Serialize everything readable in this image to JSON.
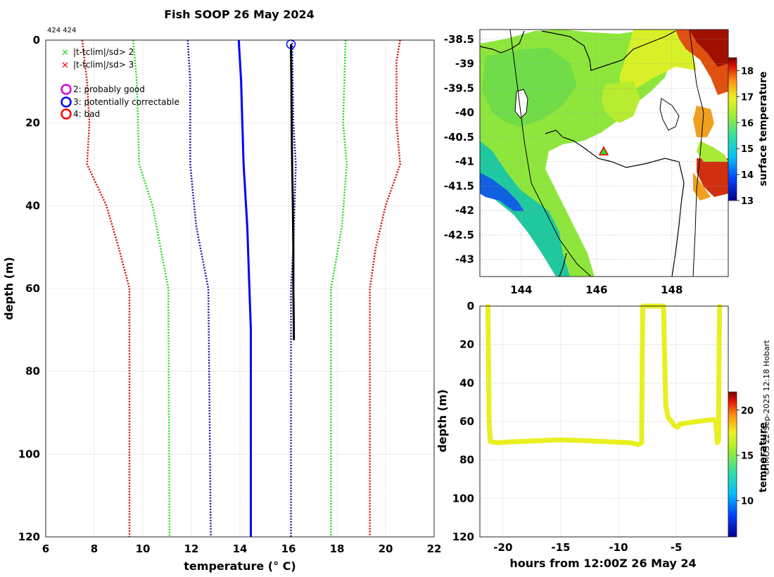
{
  "figure": {
    "title": "Fish SOOP 26 May 2024",
    "id_label": "424 424",
    "credit": "© IMOS 22-Sep-2025 12:18 Hobart"
  },
  "colors": {
    "profile": "#000000",
    "clim_mean": "#0000ff",
    "sd2": "#22dd22",
    "sd3": "#cc1111",
    "sd1": "#1a1aa8",
    "flag_good": "#dd00dd",
    "flag_correctable": "#0000ff",
    "flag_bad": "#ff0000",
    "track": "#e8f020"
  },
  "chart_data": [
    {
      "type": "line",
      "title": "Fish SOOP 26 May 2024",
      "xlabel": "temperature (° C)",
      "ylabel": "depth (m)",
      "xlim": [
        6,
        22
      ],
      "ylim": [
        120,
        0
      ],
      "xticks": [
        6,
        8,
        10,
        12,
        14,
        16,
        18,
        20,
        22
      ],
      "yticks": [
        0,
        20,
        40,
        60,
        80,
        100,
        120
      ],
      "grid": true,
      "legend": {
        "placement": "top-left",
        "entries": [
          {
            "marker": "x",
            "color": "#22dd22",
            "label": "|t-tclim|/sd> 2"
          },
          {
            "marker": "x",
            "color": "#ff0000",
            "label": "|t-tclim|/sd> 3"
          },
          {
            "marker": "o",
            "color": "#dd00dd",
            "label": "2: probably good"
          },
          {
            "marker": "o",
            "color": "#0000ff",
            "label": "3: potentially correctable"
          },
          {
            "marker": "o",
            "color": "#ff0000",
            "label": "4: bad"
          }
        ]
      },
      "series": [
        {
          "name": "clim_mean",
          "style": "solid",
          "color": "#0000ff",
          "points": [
            [
              13.95,
              0
            ],
            [
              14.0,
              5
            ],
            [
              14.05,
              10
            ],
            [
              14.1,
              20
            ],
            [
              14.15,
              30
            ],
            [
              14.3,
              45
            ],
            [
              14.45,
              70
            ],
            [
              14.45,
              120
            ]
          ]
        },
        {
          "name": "clim_minus_1sd",
          "style": "dotted",
          "color": "#1a1aa8",
          "points": [
            [
              11.85,
              0
            ],
            [
              11.95,
              10
            ],
            [
              11.95,
              30
            ],
            [
              12.2,
              45
            ],
            [
              12.7,
              60
            ],
            [
              12.8,
              120
            ]
          ]
        },
        {
          "name": "clim_plus_1sd",
          "style": "dotted",
          "color": "#1a1aa8",
          "points": [
            [
              16.15,
              0
            ],
            [
              16.2,
              20
            ],
            [
              16.3,
              30
            ],
            [
              16.2,
              50
            ],
            [
              16.1,
              60
            ],
            [
              16.1,
              120
            ]
          ]
        },
        {
          "name": "clim_minus_2sd",
          "style": "dotted",
          "color": "#22dd22",
          "points": [
            [
              9.6,
              0
            ],
            [
              9.75,
              10
            ],
            [
              9.85,
              30
            ],
            [
              10.4,
              40
            ],
            [
              11.05,
              60
            ],
            [
              11.1,
              120
            ]
          ]
        },
        {
          "name": "clim_plus_2sd",
          "style": "dotted",
          "color": "#22dd22",
          "points": [
            [
              18.35,
              0
            ],
            [
              18.25,
              20
            ],
            [
              18.4,
              30
            ],
            [
              18.2,
              45
            ],
            [
              17.75,
              60
            ],
            [
              17.75,
              120
            ]
          ]
        },
        {
          "name": "clim_minus_3sd",
          "style": "dotted",
          "color": "#cc1111",
          "points": [
            [
              7.5,
              0
            ],
            [
              7.7,
              10
            ],
            [
              7.8,
              20
            ],
            [
              7.7,
              30
            ],
            [
              8.5,
              40
            ],
            [
              9.0,
              50
            ],
            [
              9.45,
              60
            ],
            [
              9.45,
              120
            ]
          ]
        },
        {
          "name": "clim_plus_3sd",
          "style": "dotted",
          "color": "#cc1111",
          "points": [
            [
              20.6,
              0
            ],
            [
              20.45,
              5
            ],
            [
              20.45,
              20
            ],
            [
              20.6,
              30
            ],
            [
              20.0,
              40
            ],
            [
              19.6,
              50
            ],
            [
              19.35,
              60
            ],
            [
              19.35,
              120
            ]
          ]
        },
        {
          "name": "observed_profile",
          "style": "solid",
          "color": "#000000",
          "points": [
            [
              16.1,
              1
            ],
            [
              16.12,
              10
            ],
            [
              16.13,
              20
            ],
            [
              16.15,
              30
            ],
            [
              16.18,
              40
            ],
            [
              16.2,
              50
            ],
            [
              16.2,
              60
            ],
            [
              16.22,
              70
            ],
            [
              16.22,
              72.5
            ]
          ]
        }
      ],
      "flag_markers": [
        {
          "label": "3: potentially correctable",
          "x": 16.1,
          "y": 1
        }
      ]
    },
    {
      "type": "heatmap",
      "title": "",
      "xticks": [
        144,
        146,
        148
      ],
      "yticks": [
        -38.5,
        -39,
        -39.5,
        -40,
        -40.5,
        -41,
        -41.5,
        -42,
        -42.5,
        -43
      ],
      "xlim": [
        142.9,
        149.5
      ],
      "ylim": [
        -43.35,
        -38.3
      ],
      "colorbar": {
        "label": "surface temperature",
        "min": 13,
        "max": 18.5,
        "ticks": [
          13,
          14,
          15,
          16,
          17,
          18
        ]
      },
      "marker": {
        "type": "triangle",
        "lon": 146.0,
        "lat": -40.8
      }
    },
    {
      "type": "scatter",
      "xlabel": "hours from 12:00Z 26 May 24",
      "ylabel": "depth (m)",
      "xlim": [
        -22,
        -0.5
      ],
      "ylim": [
        120,
        0
      ],
      "xticks": [
        -20,
        -15,
        -10,
        -5
      ],
      "yticks": [
        0,
        20,
        40,
        60,
        80,
        100,
        120
      ],
      "grid": true,
      "colorbar": {
        "label": "temperature",
        "min": 6,
        "max": 22,
        "ticks": [
          10,
          15,
          20
        ]
      },
      "track": [
        [
          -21.3,
          0
        ],
        [
          -21.25,
          30
        ],
        [
          -21.2,
          60
        ],
        [
          -21.1,
          70.5
        ],
        [
          -20.5,
          71
        ],
        [
          -19,
          70.5
        ],
        [
          -17,
          70
        ],
        [
          -15,
          69.5
        ],
        [
          -13,
          70
        ],
        [
          -11,
          70.5
        ],
        [
          -9,
          71
        ],
        [
          -8.3,
          72
        ],
        [
          -8.0,
          71
        ],
        [
          -7.95,
          30
        ],
        [
          -7.9,
          0
        ],
        [
          -6.1,
          0
        ],
        [
          -6.0,
          30
        ],
        [
          -5.9,
          52
        ],
        [
          -5.7,
          58
        ],
        [
          -5.4,
          60
        ],
        [
          -5.2,
          62
        ],
        [
          -4.9,
          63
        ],
        [
          -4.7,
          61.5
        ],
        [
          -4.3,
          61
        ],
        [
          -3.8,
          60.5
        ],
        [
          -3.2,
          60
        ],
        [
          -2.5,
          59.5
        ],
        [
          -1.8,
          59
        ],
        [
          -1.6,
          59.5
        ],
        [
          -1.5,
          66
        ],
        [
          -1.45,
          71
        ],
        [
          -1.35,
          70
        ],
        [
          -1.3,
          30
        ],
        [
          -1.25,
          0
        ]
      ]
    }
  ]
}
